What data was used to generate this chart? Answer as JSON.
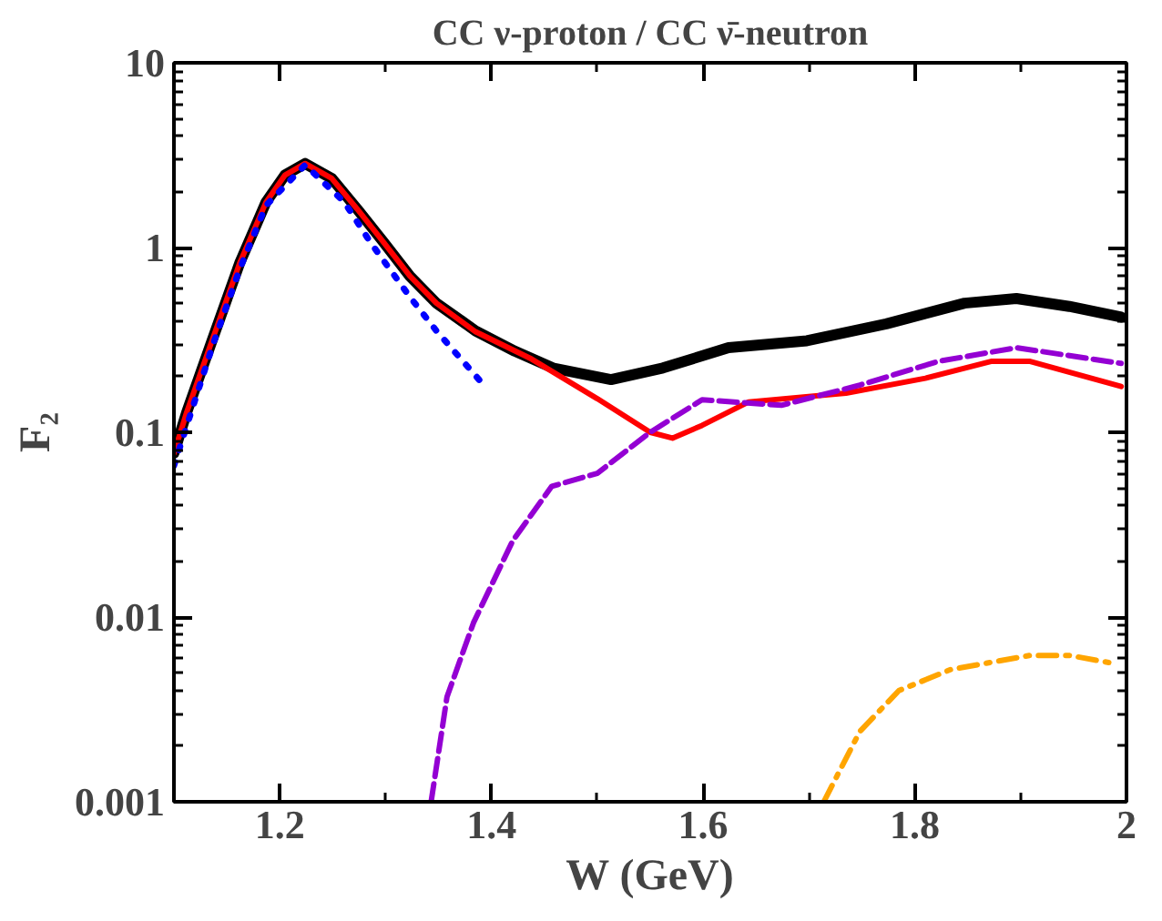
{
  "chart_data": {
    "type": "line",
    "title": "CC ν-proton / CC ν̄-neutron",
    "xlabel": "W (GeV)",
    "ylabel": "F₂",
    "log": "y",
    "xlim": [
      1.1,
      2.0
    ],
    "ylim": [
      0.001,
      10
    ],
    "xticks": [
      1.2,
      1.4,
      1.6,
      1.8,
      {
        "value": 2.0,
        "label": "2"
      }
    ],
    "yticks": [
      {
        "value": 0.001,
        "label": "0.001"
      },
      {
        "value": 0.01,
        "label": "0.01"
      },
      {
        "value": 0.1,
        "label": "0.1"
      },
      {
        "value": 1,
        "label": "1"
      },
      {
        "value": 10,
        "label": "10"
      }
    ],
    "grid": false,
    "series": [
      {
        "color": "#000000",
        "line_style": "solid",
        "x": [
          1.1,
          1.112,
          1.137,
          1.162,
          1.187,
          1.205,
          1.224,
          1.249,
          1.273,
          1.298,
          1.323,
          1.348,
          1.385,
          1.422,
          1.459,
          1.513,
          1.562,
          1.624,
          1.698,
          1.773,
          1.847,
          1.896,
          1.946,
          1.995
        ],
        "values": [
          0.077,
          0.128,
          0.325,
          0.82,
          1.76,
          2.47,
          2.85,
          2.37,
          1.62,
          1.07,
          0.7,
          0.5,
          0.354,
          0.275,
          0.222,
          0.193,
          0.223,
          0.287,
          0.313,
          0.386,
          0.5,
          0.53,
          0.48,
          0.42
        ]
      },
      {
        "color": "#ff0000",
        "line_style": "solid",
        "x": [
          1.1,
          1.112,
          1.137,
          1.162,
          1.187,
          1.205,
          1.224,
          1.249,
          1.273,
          1.298,
          1.323,
          1.348,
          1.385,
          1.438,
          1.5,
          1.55,
          1.571,
          1.599,
          1.643,
          1.735,
          1.81,
          1.872,
          1.909,
          1.995
        ],
        "values": [
          0.077,
          0.128,
          0.325,
          0.82,
          1.76,
          2.47,
          2.85,
          2.37,
          1.62,
          1.07,
          0.7,
          0.5,
          0.35,
          0.249,
          0.152,
          0.1,
          0.093,
          0.109,
          0.146,
          0.163,
          0.196,
          0.242,
          0.242,
          0.177
        ]
      },
      {
        "color": "#0000ff",
        "line_style": "dotted",
        "x": [
          1.1,
          1.137,
          1.162,
          1.187,
          1.224,
          1.261,
          1.286,
          1.323,
          1.348,
          1.391
        ],
        "values": [
          0.066,
          0.3,
          0.76,
          1.69,
          2.8,
          1.76,
          1.06,
          0.54,
          0.354,
          0.185
        ]
      },
      {
        "color": "#9400d3",
        "line_style": "dashed",
        "x": [
          1.343,
          1.358,
          1.383,
          1.42,
          1.457,
          1.5,
          1.55,
          1.599,
          1.674,
          1.748,
          1.822,
          1.896,
          1.995
        ],
        "values": [
          0.001,
          0.0037,
          0.0093,
          0.0258,
          0.051,
          0.06,
          0.1,
          0.15,
          0.14,
          0.18,
          0.242,
          0.287,
          0.236
        ]
      },
      {
        "color": "#ffa500",
        "line_style": "dashdot",
        "x": [
          1.714,
          1.748,
          1.785,
          1.834,
          1.909,
          1.946,
          1.989
        ],
        "values": [
          0.001,
          0.0024,
          0.004,
          0.0052,
          0.0062,
          0.0062,
          0.0056
        ]
      }
    ]
  }
}
